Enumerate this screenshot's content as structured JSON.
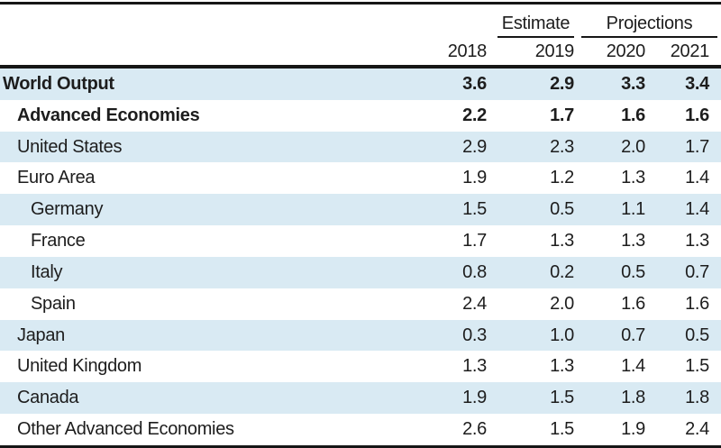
{
  "chart_data": {
    "type": "table",
    "title": "",
    "column_groups": [
      {
        "label": "Estimate",
        "columns": [
          "2019"
        ]
      },
      {
        "label": "Projections",
        "columns": [
          "2020",
          "2021"
        ]
      }
    ],
    "columns": [
      "2018",
      "2019",
      "2020",
      "2021"
    ],
    "rows": [
      {
        "label": "World Output",
        "indent": 0,
        "bold": true,
        "shaded": true,
        "values": [
          "3.6",
          "2.9",
          "3.3",
          "3.4"
        ]
      },
      {
        "label": "Advanced Economies",
        "indent": 1,
        "bold": true,
        "shaded": false,
        "values": [
          "2.2",
          "1.7",
          "1.6",
          "1.6"
        ]
      },
      {
        "label": "United States",
        "indent": 1,
        "bold": false,
        "shaded": true,
        "values": [
          "2.9",
          "2.3",
          "2.0",
          "1.7"
        ]
      },
      {
        "label": "Euro Area",
        "indent": 1,
        "bold": false,
        "shaded": false,
        "values": [
          "1.9",
          "1.2",
          "1.3",
          "1.4"
        ]
      },
      {
        "label": "Germany",
        "indent": 2,
        "bold": false,
        "shaded": true,
        "values": [
          "1.5",
          "0.5",
          "1.1",
          "1.4"
        ]
      },
      {
        "label": "France",
        "indent": 2,
        "bold": false,
        "shaded": false,
        "values": [
          "1.7",
          "1.3",
          "1.3",
          "1.3"
        ]
      },
      {
        "label": "Italy",
        "indent": 2,
        "bold": false,
        "shaded": true,
        "values": [
          "0.8",
          "0.2",
          "0.5",
          "0.7"
        ]
      },
      {
        "label": "Spain",
        "indent": 2,
        "bold": false,
        "shaded": false,
        "values": [
          "2.4",
          "2.0",
          "1.6",
          "1.6"
        ]
      },
      {
        "label": "Japan",
        "indent": 1,
        "bold": false,
        "shaded": true,
        "values": [
          "0.3",
          "1.0",
          "0.7",
          "0.5"
        ]
      },
      {
        "label": "United Kingdom",
        "indent": 1,
        "bold": false,
        "shaded": false,
        "values": [
          "1.3",
          "1.3",
          "1.4",
          "1.5"
        ]
      },
      {
        "label": "Canada",
        "indent": 1,
        "bold": false,
        "shaded": true,
        "values": [
          "1.9",
          "1.5",
          "1.8",
          "1.8"
        ]
      },
      {
        "label": "Other Advanced Economies",
        "indent": 1,
        "bold": false,
        "shaded": false,
        "values": [
          "2.6",
          "1.5",
          "1.9",
          "2.4"
        ]
      }
    ],
    "colors": {
      "row_shade": "#d9eaf3",
      "rule": "#161616",
      "text": "#1d1d1d",
      "background": "#ffffff"
    }
  }
}
